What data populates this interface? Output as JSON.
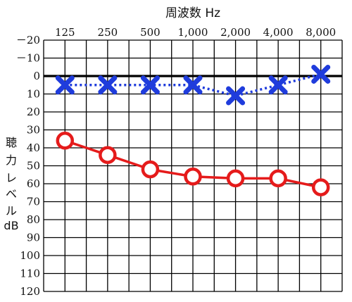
{
  "chart_data": {
    "type": "line",
    "title": "周波数 Hz",
    "ylabel_lines": [
      "聴",
      "力",
      "レ",
      "ベ",
      "ル",
      "dB"
    ],
    "categories": [
      "125",
      "250",
      "500",
      "1,000",
      "2,000",
      "4,000",
      "8,000"
    ],
    "y_ticks": [
      "－20",
      "－10",
      "0",
      "10",
      "20",
      "30",
      "40",
      "50",
      "60",
      "70",
      "80",
      "90",
      "100",
      "110",
      "120"
    ],
    "ylim": [
      -20,
      120
    ],
    "y_inverted": true,
    "grid": true,
    "series": [
      {
        "values": [
          5,
          5,
          5,
          5,
          11,
          5,
          -1
        ],
        "marker": "x",
        "line": "dotted",
        "color": "#1f3cdc"
      },
      {
        "values": [
          36,
          44,
          52,
          56,
          57,
          57,
          62
        ],
        "marker": "o",
        "line": "solid",
        "color": "#e51b1b"
      }
    ]
  }
}
